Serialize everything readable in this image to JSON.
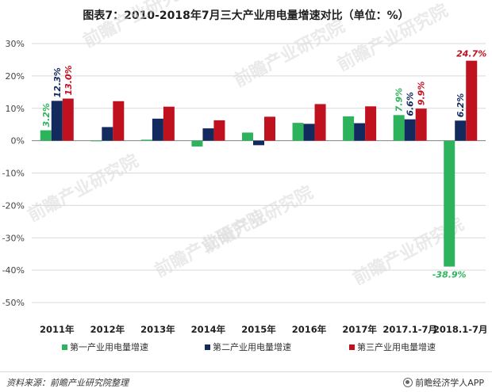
{
  "title": "图表7：2010-2018年7月三大产业用电量增速对比（单位：%）",
  "source": "资料来源：前瞻产业研究院整理",
  "brand": "前瞻经济学人APP",
  "watermark_text": "前瞻产业研究院",
  "chart_data": {
    "type": "bar",
    "title": "图表7：2010-2018年7月三大产业用电量增速对比（单位：%）",
    "categories": [
      "2011年",
      "2012年",
      "2013年",
      "2014年",
      "2015年",
      "2016年",
      "2017年",
      "2017.1-7月",
      "2018.1-7月"
    ],
    "y_ticks": [
      "30%",
      "20%",
      "10%",
      "0%",
      "-10%",
      "-20%",
      "-30%",
      "-40%",
      "-50%"
    ],
    "ylim": [
      -50,
      30
    ],
    "y_step": 10,
    "grid": true,
    "legend_position": "bottom",
    "series": [
      {
        "name": "第一产业用电量增速",
        "color": "#2db35b",
        "values": [
          3.2,
          0.0,
          0.3,
          -1.8,
          2.5,
          5.5,
          7.5,
          7.9,
          -38.9
        ]
      },
      {
        "name": "第二产业用电量增速",
        "color": "#132a5e",
        "values": [
          12.3,
          4.2,
          6.8,
          3.8,
          -1.4,
          5.2,
          5.4,
          6.6,
          6.2
        ]
      },
      {
        "name": "第三产业用电量增速",
        "color": "#c0111f",
        "values": [
          13.0,
          12.2,
          10.5,
          6.3,
          7.4,
          11.3,
          10.6,
          9.9,
          24.7
        ]
      }
    ],
    "data_labels": [
      {
        "category": "2011年",
        "series": 0,
        "text": "3.2%"
      },
      {
        "category": "2011年",
        "series": 1,
        "text": "12.3%"
      },
      {
        "category": "2011年",
        "series": 2,
        "text": "13.0%"
      },
      {
        "category": "2017.1-7月",
        "series": 0,
        "text": "7.9%"
      },
      {
        "category": "2017.1-7月",
        "series": 1,
        "text": "6.6%"
      },
      {
        "category": "2017.1-7月",
        "series": 2,
        "text": "9.9%"
      },
      {
        "category": "2018.1-7月",
        "series": 0,
        "text": "-38.9%"
      },
      {
        "category": "2018.1-7月",
        "series": 1,
        "text": "6.2%"
      },
      {
        "category": "2018.1-7月",
        "series": 2,
        "text": "24.7%"
      }
    ]
  }
}
